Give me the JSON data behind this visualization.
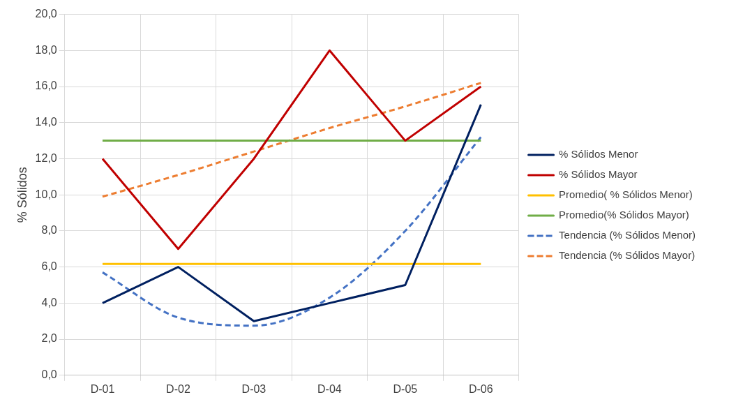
{
  "chart_data": {
    "type": "line",
    "ylabel": "% Sólidos",
    "categories": [
      "D-01",
      "D-02",
      "D-03",
      "D-04",
      "D-05",
      "D-06"
    ],
    "series": [
      {
        "name": "% Sólidos Menor",
        "color": "#002060",
        "values": [
          4,
          6,
          3,
          4,
          5,
          15
        ]
      },
      {
        "name": "% Sólidos Mayor",
        "color": "#c00000",
        "values": [
          12,
          7,
          12,
          18,
          13,
          16
        ]
      },
      {
        "name": "Promedio( % Sólidos Menor)",
        "color": "#ffc000",
        "values": [
          6.17,
          6.17,
          6.17,
          6.17,
          6.17,
          6.17
        ]
      },
      {
        "name": "Promedio(% Sólidos Mayor)",
        "color": "#70ad47",
        "values": [
          13,
          13,
          13,
          13,
          13,
          13
        ]
      },
      {
        "name": "Tendencia (% Sólidos Menor)",
        "color": "#4472c4",
        "values": [
          5.7,
          3.2,
          2.75,
          4.3,
          8,
          13.2
        ],
        "line_style": "dashed"
      },
      {
        "name": "Tendencia (% Sólidos Mayor)",
        "color": "#ed7d31",
        "values": [
          9.9,
          11.1,
          12.4,
          13.7,
          14.9,
          16.2
        ],
        "line_style": "dashed"
      }
    ],
    "ylim": [
      0,
      20
    ],
    "yticks": [
      {
        "value": 0,
        "label": "0,0"
      },
      {
        "value": 2,
        "label": "2,0"
      },
      {
        "value": 4,
        "label": "4,0"
      },
      {
        "value": 6,
        "label": "6,0"
      },
      {
        "value": 8,
        "label": "8,0"
      },
      {
        "value": 10,
        "label": "10,0"
      },
      {
        "value": 12,
        "label": "12,0"
      },
      {
        "value": 14,
        "label": "14,0"
      },
      {
        "value": 16,
        "label": "16,0"
      },
      {
        "value": 18,
        "label": "18,0"
      },
      {
        "value": 20,
        "label": "20,0"
      }
    ],
    "grid": true,
    "legend": "right",
    "marker": "none"
  }
}
